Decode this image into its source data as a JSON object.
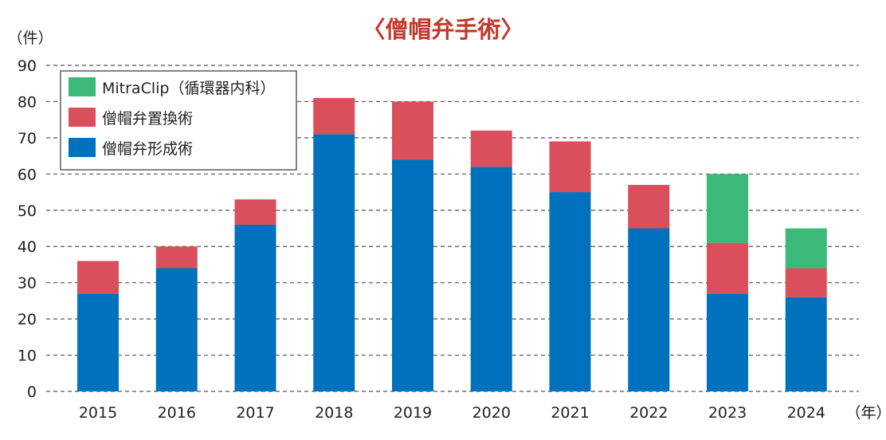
{
  "chart_data": {
    "type": "bar",
    "stacked": true,
    "title": "〈僧帽弁手術〉",
    "ylabel": "（件）",
    "xlabel": "（年）",
    "ylim": [
      0,
      90
    ],
    "yticks": [
      0,
      10,
      20,
      30,
      40,
      50,
      60,
      70,
      80,
      90
    ],
    "grid": true,
    "legend_position": "top-left",
    "categories": [
      "2015",
      "2016",
      "2017",
      "2018",
      "2019",
      "2020",
      "2021",
      "2022",
      "2023",
      "2024"
    ],
    "series": [
      {
        "name": "僧帽弁形成術",
        "color": "#0071BC",
        "values": [
          27,
          34,
          46,
          71,
          64,
          62,
          55,
          45,
          27,
          26
        ]
      },
      {
        "name": "僧帽弁置換術",
        "color": "#D94F5C",
        "values": [
          9,
          6,
          7,
          10,
          16,
          10,
          14,
          12,
          14,
          8
        ]
      },
      {
        "name": "MitraClip（循環器内科）",
        "color": "#3CB878",
        "values": [
          0,
          0,
          0,
          0,
          0,
          0,
          0,
          0,
          19,
          11
        ]
      }
    ],
    "legend_order": [
      2,
      1,
      0
    ]
  },
  "colors": {
    "title": "#C0392B",
    "axis_text": "#222222",
    "grid": "#555555"
  }
}
